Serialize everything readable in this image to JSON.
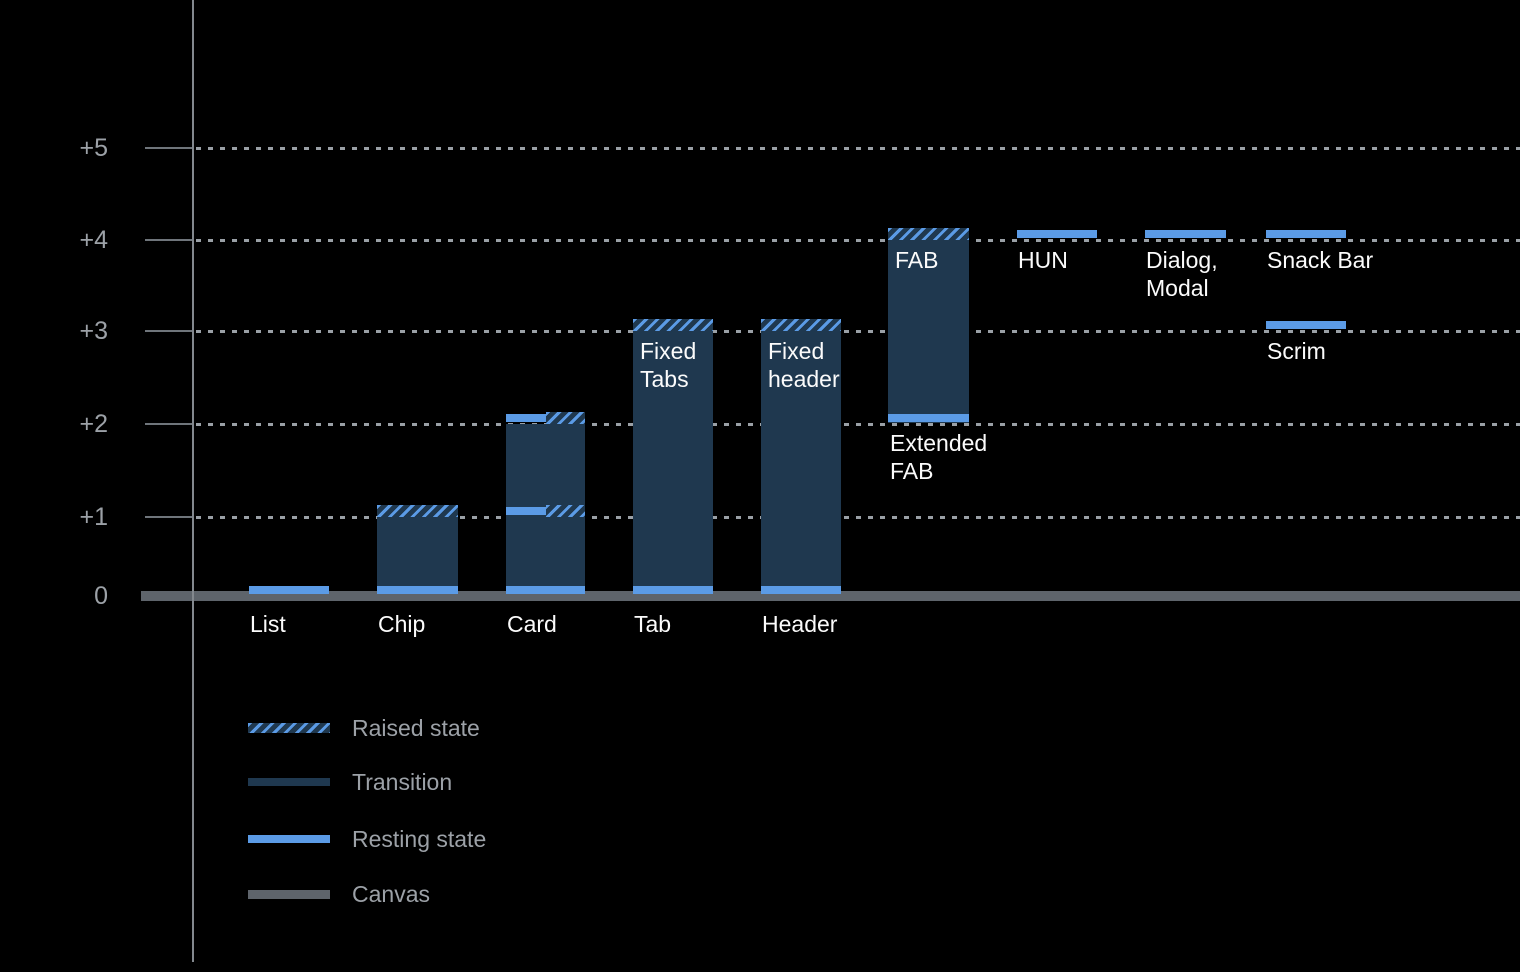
{
  "colors": {
    "background": "#000000",
    "resting_blue": "#5B9BE6",
    "transition_navy": "#1F384F",
    "canvas_gray": "#5E646B",
    "grid_gray": "#9AA0A6",
    "axis_gray": "#83888E",
    "muted_text": "#9CA1A7",
    "label_text": "#FBFBFB"
  },
  "y_axis": {
    "tick_labels_top_to_bottom": [
      "+5",
      "+4",
      "+3",
      "+2",
      "+1",
      "0"
    ]
  },
  "legend": {
    "items": [
      {
        "label": "Raised state",
        "swatch": "raised"
      },
      {
        "label": "Transition",
        "swatch": "transition"
      },
      {
        "label": "Resting state",
        "swatch": "resting"
      },
      {
        "label": "Canvas",
        "swatch": "canvas"
      }
    ]
  },
  "chart_data": {
    "type": "bar",
    "title": "",
    "xlabel": "",
    "ylabel": "",
    "ylim": [
      0,
      5
    ],
    "ytick_labels": [
      "0",
      "+1",
      "+2",
      "+3",
      "+4",
      "+5"
    ],
    "grid": "horizontal-dotted",
    "legend": [
      "Raised state",
      "Transition",
      "Resting state",
      "Canvas"
    ],
    "legend_position": "bottom-left",
    "components": [
      {
        "label": "List",
        "resting_elevations": [
          0
        ],
        "transition_range": null,
        "raised_elevations": []
      },
      {
        "label": "Chip",
        "resting_elevations": [
          0
        ],
        "transition_range": [
          0,
          1
        ],
        "raised_elevations": [
          1
        ]
      },
      {
        "label": "Card",
        "resting_elevations": [
          0,
          1,
          2
        ],
        "transition_range": [
          0,
          2
        ],
        "raised_elevations": [
          1,
          2
        ]
      },
      {
        "label": "Tab",
        "inner_label": "Fixed Tabs",
        "inner_label_display": "Fixed\nTabs",
        "resting_elevations": [
          0
        ],
        "transition_range": [
          0,
          3
        ],
        "raised_elevations": [
          3
        ]
      },
      {
        "label": "Header",
        "inner_label": "Fixed header",
        "inner_label_display": "Fixed\nheader",
        "resting_elevations": [
          0
        ],
        "transition_range": [
          0,
          3
        ],
        "raised_elevations": [
          3
        ]
      },
      {
        "label": "Extended FAB",
        "label_display": "Extended\nFAB",
        "inner_label": "FAB",
        "resting_elevations": [
          2
        ],
        "transition_range": [
          2,
          4
        ],
        "raised_elevations": [
          4
        ]
      },
      {
        "label": "HUN",
        "resting_elevations": [
          4
        ],
        "transition_range": null,
        "raised_elevations": []
      },
      {
        "label": "Dialog, Modal",
        "label_display": "Dialog,\nModal",
        "resting_elevations": [
          4
        ],
        "transition_range": null,
        "raised_elevations": []
      },
      {
        "label": "Snack Bar",
        "resting_elevations": [
          4
        ],
        "transition_range": null,
        "raised_elevations": []
      },
      {
        "label": "Scrim",
        "resting_elevations": [
          3
        ],
        "transition_range": null,
        "raised_elevations": []
      }
    ]
  }
}
